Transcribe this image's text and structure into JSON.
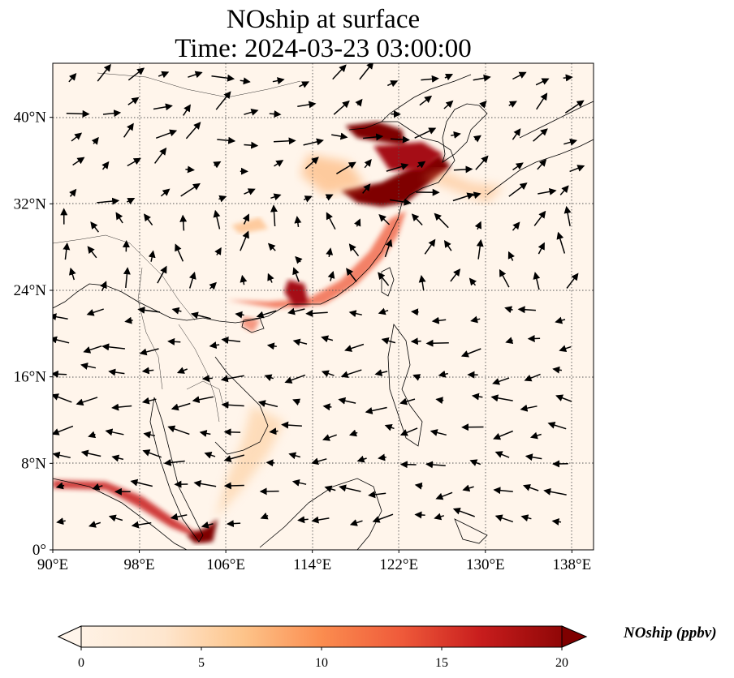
{
  "title": {
    "line1": "NOship at surface",
    "line2": "Time: 2024-03-23 03:00:00"
  },
  "map": {
    "lon_range": [
      90,
      140
    ],
    "lat_range": [
      0,
      45
    ],
    "grid_style": "dotted",
    "x_ticks": [
      {
        "value": 90,
        "label": "90°E"
      },
      {
        "value": 98,
        "label": "98°E"
      },
      {
        "value": 106,
        "label": "106°E"
      },
      {
        "value": 114,
        "label": "114°E"
      },
      {
        "value": 122,
        "label": "122°E"
      },
      {
        "value": 130,
        "label": "130°E"
      },
      {
        "value": 138,
        "label": "138°E"
      }
    ],
    "y_ticks": [
      {
        "value": 0,
        "label": "0°"
      },
      {
        "value": 8,
        "label": "8°N"
      },
      {
        "value": 16,
        "label": "16°N"
      },
      {
        "value": 24,
        "label": "24°N"
      },
      {
        "value": 32,
        "label": "32°N"
      },
      {
        "value": 40,
        "label": "40°N"
      }
    ],
    "field_name": "NOship",
    "wind_vectors": "present (arrows)"
  },
  "colorbar": {
    "label": "NOship (ppbv)",
    "min": 0,
    "max": 20,
    "extend": "both",
    "ticks": [
      {
        "value": 0,
        "label": "0"
      },
      {
        "value": 5,
        "label": "5"
      },
      {
        "value": 10,
        "label": "10"
      },
      {
        "value": 15,
        "label": "15"
      },
      {
        "value": 20,
        "label": "20"
      }
    ],
    "colors": [
      "#fff5eb",
      "#fdd9b4",
      "#fdae6b",
      "#f16913",
      "#d94801",
      "#a63603",
      "#7f0000"
    ]
  }
}
